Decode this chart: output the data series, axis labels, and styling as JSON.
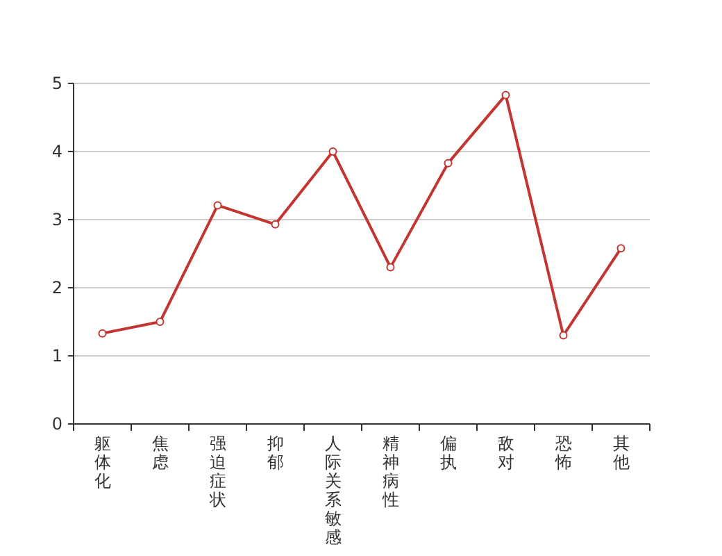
{
  "chart_data": {
    "type": "line",
    "categories": [
      "躯体化",
      "焦虑",
      "强迫症状",
      "抑郁",
      "人际关系敏感",
      "精神病性",
      "偏执",
      "敌对",
      "恐怖",
      "其他"
    ],
    "series": [
      {
        "color": "#c23531",
        "values": [
          1.33,
          1.5,
          3.21,
          2.93,
          4.0,
          2.3,
          3.83,
          4.83,
          1.3,
          2.58
        ]
      }
    ],
    "ylim": [
      0,
      5
    ],
    "yticks": [
      0,
      1,
      2,
      3,
      4,
      5
    ],
    "grid": "y",
    "marker": "circle",
    "line_style": "solid"
  }
}
